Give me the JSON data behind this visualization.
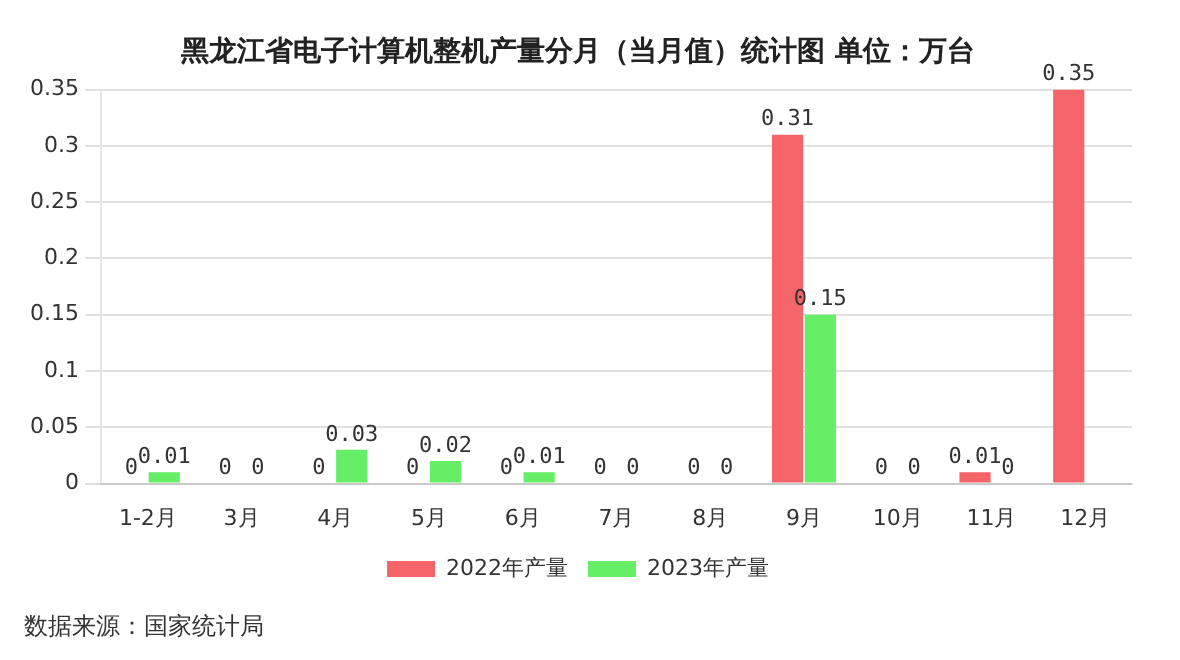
{
  "chart_data": {
    "type": "bar",
    "title": "黑龙江省电子计算机整机产量分月（当月值）统计图 单位：万台",
    "categories": [
      "1-2月",
      "3月",
      "4月",
      "5月",
      "6月",
      "7月",
      "8月",
      "9月",
      "10月",
      "11月",
      "12月"
    ],
    "series": [
      {
        "name": "2022年产量",
        "color": "#f46468",
        "values": [
          0,
          0,
          0,
          0,
          0,
          0,
          0,
          0.31,
          0,
          0.01,
          0.35
        ]
      },
      {
        "name": "2023年产量",
        "color": "#66ee66",
        "values": [
          0.01,
          0,
          0.03,
          0.02,
          0.01,
          0,
          0,
          0.15,
          0,
          0,
          null
        ]
      }
    ],
    "ylim": [
      0,
      0.35
    ],
    "yticks": [
      0,
      0.05,
      0.1,
      0.15,
      0.2,
      0.25,
      0.3,
      0.35
    ],
    "grid": "y",
    "legend": "bottom",
    "data_labels": true,
    "annotations": [
      "数据来源：国家统计局"
    ]
  }
}
